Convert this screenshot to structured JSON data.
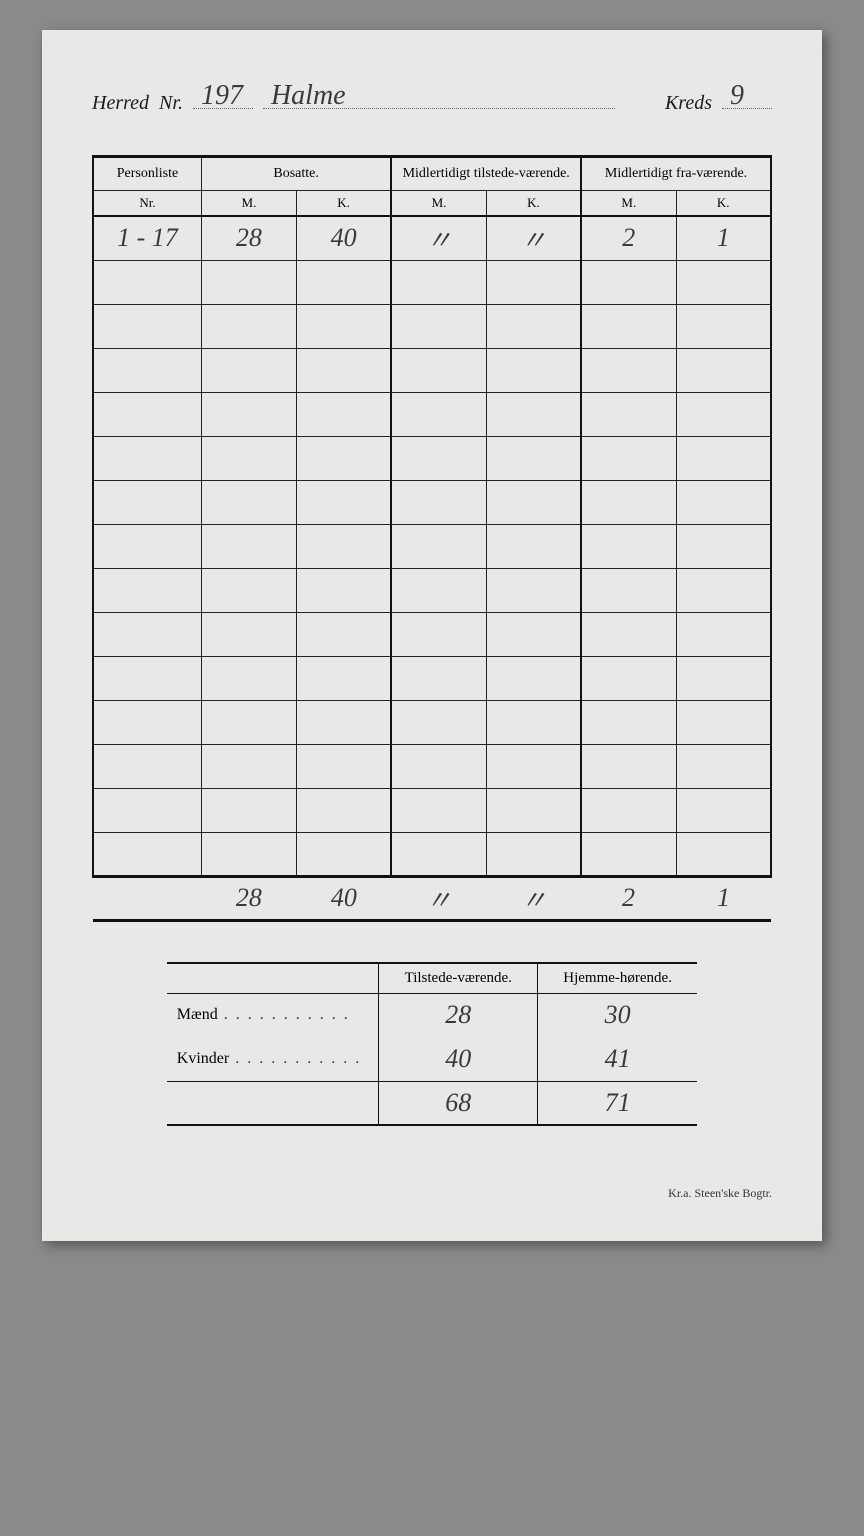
{
  "header": {
    "herred_label": "Herred",
    "nr_label": "Nr.",
    "herred_nr": "197",
    "herred_name": "Halme",
    "kreds_label": "Kreds",
    "kreds_nr": "9"
  },
  "main_table": {
    "headers": {
      "personliste": "Personliste",
      "bosatte": "Bosatte.",
      "tilstede": "Midlertidigt tilstede-værende.",
      "fra": "Midlertidigt fra-værende.",
      "nr": "Nr.",
      "m": "M.",
      "k": "K."
    },
    "row": {
      "nr": "1 - 17",
      "bos_m": "28",
      "bos_k": "40",
      "til_m": "〃",
      "til_k": "〃",
      "fra_m": "2",
      "fra_k": "1"
    },
    "totals": {
      "bos_m": "28",
      "bos_k": "40",
      "til_m": "〃",
      "til_k": "〃",
      "fra_m": "2",
      "fra_k": "1"
    },
    "empty_rows": 14
  },
  "summary": {
    "headers": {
      "tilstede": "Tilstede-værende.",
      "hjemme": "Hjemme-hørende."
    },
    "maend_label": "Mænd",
    "kvinder_label": "Kvinder",
    "maend": {
      "tilstede": "28",
      "hjemme": "30"
    },
    "kvinder": {
      "tilstede": "40",
      "hjemme": "41"
    },
    "sum": {
      "tilstede": "68",
      "hjemme": "71"
    }
  },
  "footer": "Kr.a.   Steen'ske Bogtr."
}
